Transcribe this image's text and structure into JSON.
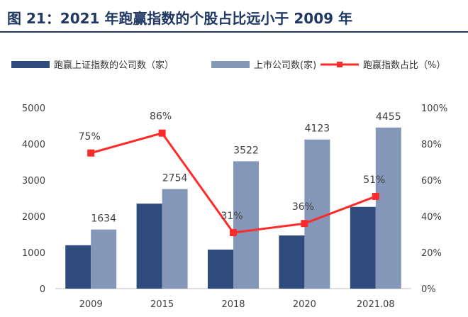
{
  "header": {
    "title": "图 21：2021 年跑赢指数的个股占比远小于 2009 年"
  },
  "chart_data": {
    "type": "bar",
    "categories": [
      "2009",
      "2015",
      "2018",
      "2020",
      "2021.08"
    ],
    "series": [
      {
        "name": "跑赢上证指数的公司数（家）",
        "kind": "bar",
        "axis": "left",
        "color": "#2f4b7c",
        "values": [
          1200,
          2350,
          1080,
          1470,
          2260
        ],
        "show_labels": false
      },
      {
        "name": "上市公司数(家)",
        "kind": "bar",
        "axis": "left",
        "color": "#8497b9",
        "values": [
          1634,
          2754,
          3522,
          4123,
          4455
        ],
        "show_labels": true
      },
      {
        "name": "跑赢指数占比（%）",
        "kind": "line",
        "axis": "right",
        "color": "#ff2a2a",
        "values": [
          75,
          86,
          31,
          36,
          51
        ],
        "show_labels": true
      }
    ],
    "left_axis": {
      "min": 0,
      "max": 5000,
      "ticks": [
        "0",
        "1000",
        "2000",
        "3000",
        "4000",
        "5000"
      ]
    },
    "right_axis": {
      "min": 0,
      "max": 100,
      "ticks": [
        "0%",
        "20%",
        "40%",
        "60%",
        "80%",
        "100%"
      ]
    },
    "line_labels": [
      "75%",
      "86%",
      "31%",
      "36%",
      "51%"
    ],
    "grid": false,
    "legend_position": "top"
  }
}
